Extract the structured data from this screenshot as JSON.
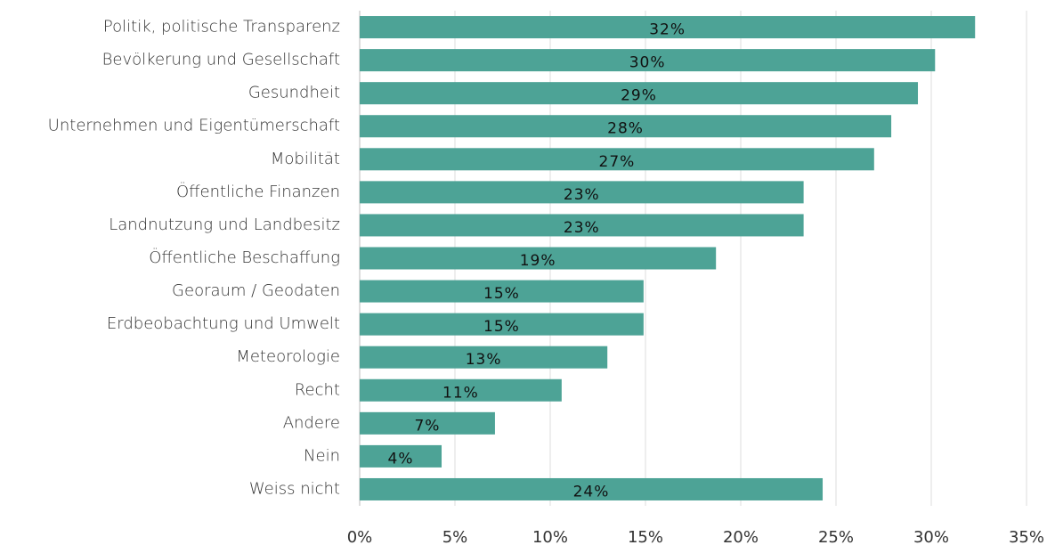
{
  "chart_data": {
    "type": "barh",
    "categories": [
      "Politik, politische Transparenz",
      "Bevölkerung und Gesellschaft",
      "Gesundheit",
      "Unternehmen und Eigentümerschaft",
      "Mobilität",
      "Öffentliche Finanzen",
      "Landnutzung und Landbesitz",
      "Öffentliche Beschaffung",
      "Georaum / Geodaten",
      "Erdbeobachtung und Umwelt",
      "Meteorologie",
      "Recht",
      "Andere",
      "Nein",
      "Weiss nicht"
    ],
    "values": [
      32.3,
      30.2,
      29.3,
      27.9,
      27.0,
      23.3,
      23.3,
      18.7,
      14.9,
      14.9,
      13.0,
      10.6,
      7.1,
      4.3,
      24.3
    ],
    "value_labels": [
      "32%",
      "30%",
      "29%",
      "28%",
      "27%",
      "23%",
      "23%",
      "19%",
      "15%",
      "15%",
      "13%",
      "11%",
      "7%",
      "4%",
      "24%"
    ],
    "color": "#4da396",
    "xlim": [
      0,
      35
    ],
    "xticks": [
      {
        "value": 0,
        "label": "0%"
      },
      {
        "value": 5,
        "label": "5%"
      },
      {
        "value": 10,
        "label": "10%"
      },
      {
        "value": 15,
        "label": "15%"
      },
      {
        "value": 20,
        "label": "20%"
      },
      {
        "value": 25,
        "label": "25%"
      },
      {
        "value": 30,
        "label": "30%"
      },
      {
        "value": 35,
        "label": "35%"
      }
    ],
    "grid": true
  }
}
